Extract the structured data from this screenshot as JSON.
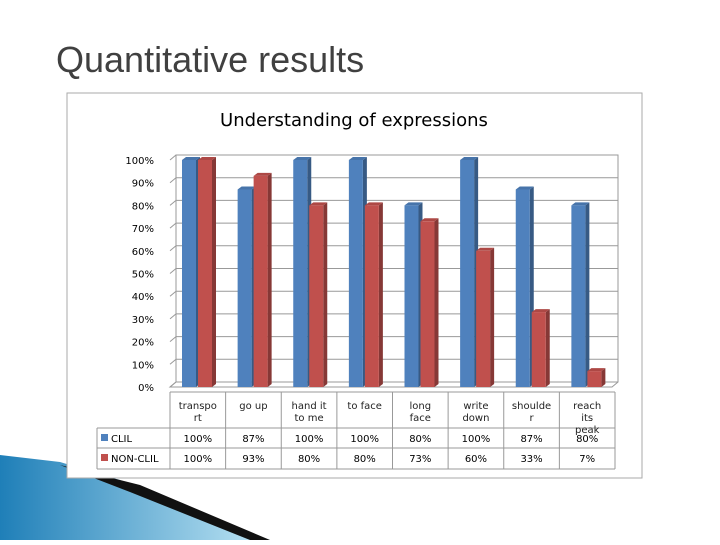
{
  "title": "Quantitative results",
  "chart_data": {
    "type": "bar3d",
    "title": "Understanding of expressions",
    "categories": [
      "transport",
      "go up",
      "hand it to me",
      "to face",
      "long face",
      "write down",
      "shoulder",
      "reach its peak"
    ],
    "series": [
      {
        "name": "CLIL",
        "color": "#4f81bd",
        "values": [
          100,
          87,
          100,
          100,
          80,
          100,
          87,
          80
        ],
        "value_labels": [
          "100%",
          "87%",
          "100%",
          "100%",
          "80%",
          "100%",
          "87%",
          "80%"
        ]
      },
      {
        "name": "NON-CLIL",
        "color": "#c0504d",
        "values": [
          100,
          93,
          80,
          80,
          73,
          60,
          33,
          7
        ],
        "value_labels": [
          "100%",
          "93%",
          "80%",
          "80%",
          "73%",
          "60%",
          "33%",
          "7%"
        ]
      }
    ],
    "ylim": [
      0,
      100
    ],
    "yticks": [
      {
        "value": 0,
        "label": "0%"
      },
      {
        "value": 10,
        "label": "10%"
      },
      {
        "value": 20,
        "label": "20%"
      },
      {
        "value": 30,
        "label": "30%"
      },
      {
        "value": 40,
        "label": "40%"
      },
      {
        "value": 50,
        "label": "50%"
      },
      {
        "value": 60,
        "label": "60%"
      },
      {
        "value": 70,
        "label": "70%"
      },
      {
        "value": 80,
        "label": "80%"
      },
      {
        "value": 90,
        "label": "90%"
      },
      {
        "value": 100,
        "label": "100%"
      }
    ],
    "grid": true
  }
}
